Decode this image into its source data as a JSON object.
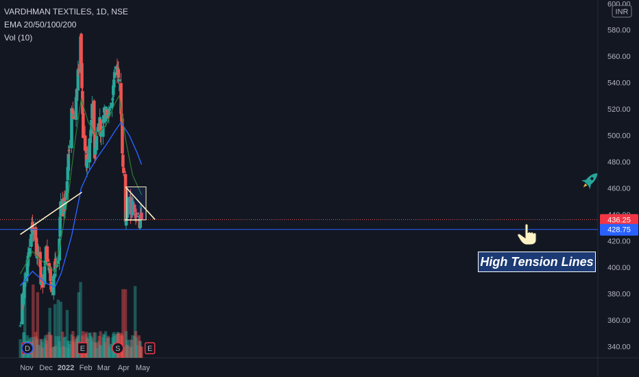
{
  "header": {
    "symbol_line": "VARDHMAN TEXTILES, 1D, NSE",
    "ema_line": "EMA 20/50/100/200",
    "vol_line": "Vol (10)"
  },
  "currency_badge": "INR",
  "annotation": "High Tension Lines",
  "price_tags": {
    "last": {
      "label": "436.25",
      "value": 436.25,
      "color": "#f23645"
    },
    "support": {
      "label": "428.75",
      "value": 428.75,
      "color": "#2962ff"
    }
  },
  "event_markers": [
    {
      "label": "E",
      "date": "2021-11-01",
      "color": "#f23645"
    },
    {
      "label": "D",
      "date": "2021-11-02",
      "color": "#2962ff"
    },
    {
      "label": "E",
      "date": "2022-01-27",
      "color": "#f23645"
    },
    {
      "label": "S",
      "date": "2022-03-23",
      "color": "#f23645"
    },
    {
      "label": "E",
      "date": "2022-05-12",
      "color": "#f23645"
    }
  ],
  "colors": {
    "up": "#26a69a",
    "down": "#ef5350",
    "ema_fast": "#2e7d32",
    "ema_slow": "#2962ff",
    "trendline": "#fff3c4",
    "accent": "#2962ff",
    "icon": "#26a69a"
  },
  "chart_data": {
    "type": "candlestick",
    "title": "VARDHMAN TEXTILES, 1D, NSE",
    "x_ticks": [
      "Nov",
      "Dec",
      "2022",
      "Feb",
      "Mar",
      "Apr",
      "May"
    ],
    "x_tick_dates": [
      "2021-11-01",
      "2021-12-01",
      "2022-01-01",
      "2022-02-01",
      "2022-03-01",
      "2022-04-01",
      "2022-05-01"
    ],
    "y_ticks": [
      340,
      360,
      380,
      400,
      420,
      440,
      460,
      480,
      500,
      520,
      540,
      560,
      580,
      600
    ],
    "ylim": [
      335,
      602
    ],
    "xlim": [
      "2021-10-22",
      "2022-05-21"
    ],
    "price_path": [
      [
        "2021-10-22",
        363
      ],
      [
        "2021-10-28",
        385
      ],
      [
        "2021-11-05",
        412
      ],
      [
        "2021-11-10",
        431
      ],
      [
        "2021-11-16",
        415
      ],
      [
        "2021-11-22",
        396
      ],
      [
        "2021-11-26",
        382
      ],
      [
        "2021-12-01",
        410
      ],
      [
        "2021-12-06",
        400
      ],
      [
        "2021-12-10",
        384
      ],
      [
        "2021-12-14",
        398
      ],
      [
        "2021-12-20",
        400
      ],
      [
        "2021-12-24",
        450
      ],
      [
        "2021-12-28",
        443
      ],
      [
        "2022-01-01",
        455
      ],
      [
        "2022-01-05",
        480
      ],
      [
        "2022-01-10",
        522
      ],
      [
        "2022-01-14",
        515
      ],
      [
        "2022-01-19",
        538
      ],
      [
        "2022-01-24",
        570
      ],
      [
        "2022-01-28",
        498
      ],
      [
        "2022-02-02",
        478
      ],
      [
        "2022-02-08",
        500
      ],
      [
        "2022-02-11",
        520
      ],
      [
        "2022-02-15",
        488
      ],
      [
        "2022-02-21",
        514
      ],
      [
        "2022-02-25",
        500
      ],
      [
        "2022-03-02",
        520
      ],
      [
        "2022-03-08",
        508
      ],
      [
        "2022-03-14",
        528
      ],
      [
        "2022-03-18",
        555
      ],
      [
        "2022-03-23",
        548
      ],
      [
        "2022-03-25",
        540
      ],
      [
        "2022-03-28",
        520
      ],
      [
        "2022-03-30",
        490
      ],
      [
        "2022-04-01",
        466
      ],
      [
        "2022-04-04",
        440
      ],
      [
        "2022-04-08",
        450
      ],
      [
        "2022-04-13",
        446
      ],
      [
        "2022-04-19",
        440
      ],
      [
        "2022-04-22",
        444
      ],
      [
        "2022-04-26",
        436
      ],
      [
        "2022-04-29",
        436.25
      ]
    ],
    "ema_fast_path": [
      [
        "2021-10-22",
        395
      ],
      [
        "2021-11-10",
        412
      ],
      [
        "2021-12-01",
        402
      ],
      [
        "2021-12-15",
        397
      ],
      [
        "2021-12-24",
        420
      ],
      [
        "2022-01-05",
        455
      ],
      [
        "2022-01-15",
        495
      ],
      [
        "2022-01-25",
        528
      ],
      [
        "2022-02-05",
        510
      ],
      [
        "2022-02-18",
        500
      ],
      [
        "2022-03-05",
        508
      ],
      [
        "2022-03-18",
        524
      ],
      [
        "2022-03-25",
        530
      ],
      [
        "2022-04-05",
        495
      ],
      [
        "2022-04-15",
        470
      ],
      [
        "2022-04-29",
        455
      ]
    ],
    "ema_slow_path": [
      [
        "2021-10-22",
        386
      ],
      [
        "2021-11-10",
        397
      ],
      [
        "2021-12-01",
        388
      ],
      [
        "2021-12-15",
        385
      ],
      [
        "2021-12-25",
        396
      ],
      [
        "2022-01-10",
        424
      ],
      [
        "2022-01-25",
        460
      ],
      [
        "2022-02-05",
        472
      ],
      [
        "2022-02-20",
        484
      ],
      [
        "2022-03-05",
        493
      ],
      [
        "2022-03-18",
        503
      ],
      [
        "2022-03-28",
        510
      ],
      [
        "2022-04-10",
        500
      ],
      [
        "2022-04-22",
        487
      ],
      [
        "2022-04-29",
        478
      ]
    ],
    "trendlines": [
      {
        "from": [
          "2021-10-22",
          425
        ],
        "to": [
          "2022-01-26",
          457
        ]
      },
      {
        "from": [
          "2022-04-04",
          461
        ],
        "to": [
          "2022-05-20",
          436.25
        ]
      },
      {
        "from": [
          "2022-04-03",
          436
        ],
        "to": [
          "2022-04-27",
          436
        ]
      }
    ],
    "consolidation_box": {
      "from": [
        "2022-04-06",
        461
      ],
      "to": [
        "2022-05-06",
        436
      ]
    },
    "horizontal_levels": [
      428.75,
      436.25
    ],
    "volume_range": [
      338,
      380
    ]
  }
}
